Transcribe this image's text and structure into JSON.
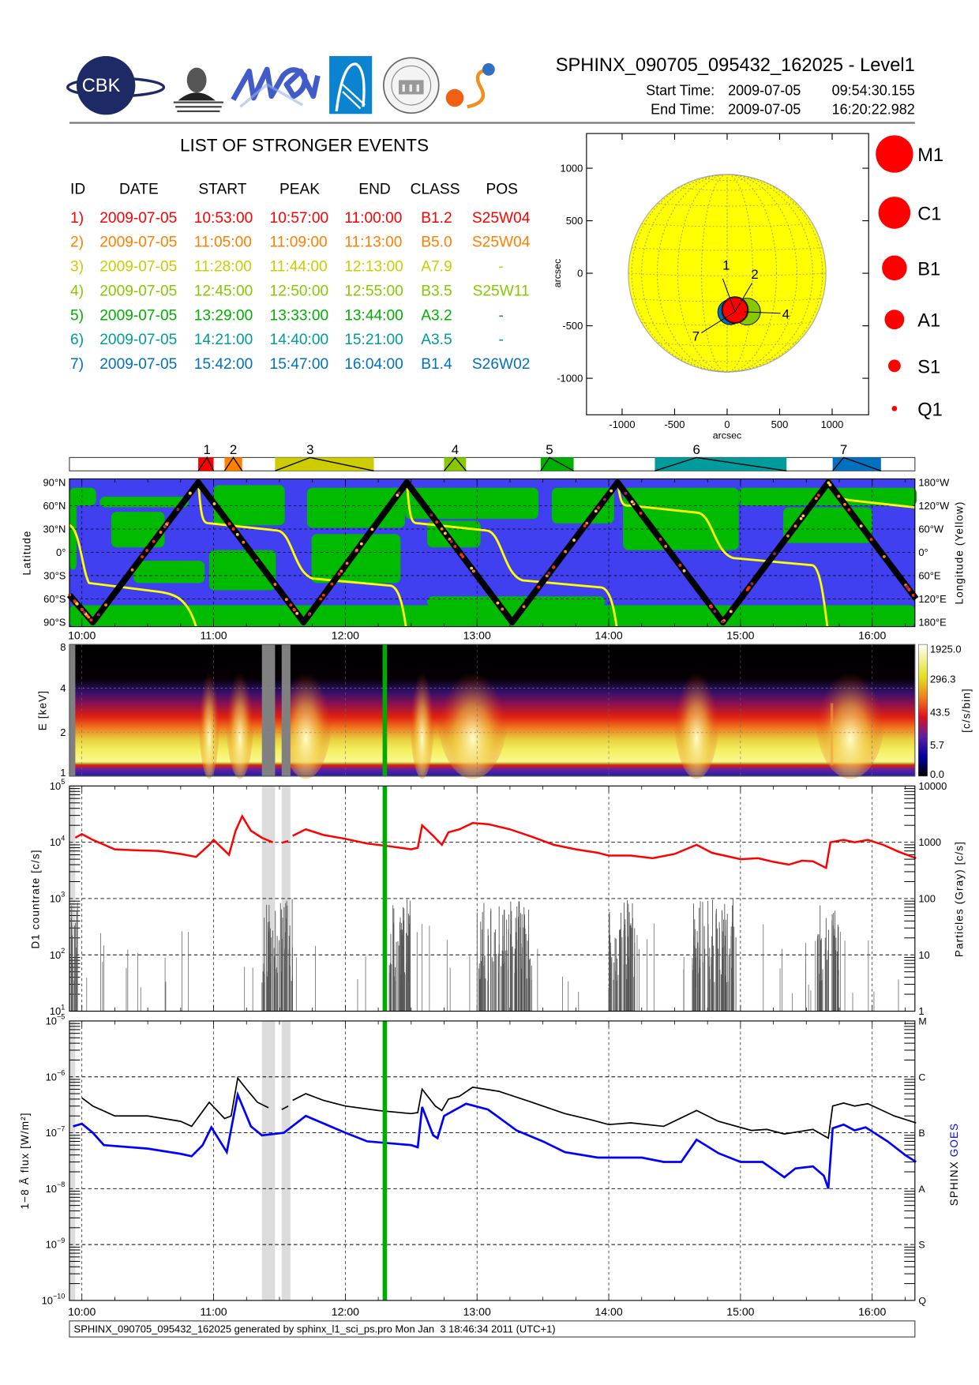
{
  "header": {
    "title": "SPHINX_090705_095432_162025 - Level1",
    "start_label": "Start Time:",
    "start_date": "2009-07-05",
    "start_time": "09:54:30.155",
    "end_label": "End Time:",
    "end_date": "2009-07-05",
    "end_time": "16:20:22.982",
    "logos": [
      "CBK PAN",
      "P.N. Lebedev Physical Institute of the Russian Academy of Science",
      "МИФИ",
      "Institute logo",
      "Seal",
      "Sun logo"
    ]
  },
  "events": {
    "title": "LIST OF STRONGER EVENTS",
    "columns": [
      "ID",
      "DATE",
      "START",
      "PEAK",
      "END",
      "CLASS",
      "POS"
    ],
    "rows": [
      {
        "id": "1)",
        "date": "2009-07-05",
        "start": "10:53:00",
        "peak": "10:57:00",
        "end": "11:00:00",
        "class": "B1.2",
        "pos": "S25W04",
        "color": "#ff0000",
        "num": "1"
      },
      {
        "id": "2)",
        "date": "2009-07-05",
        "start": "11:05:00",
        "peak": "11:09:00",
        "end": "11:13:00",
        "class": "B5.0",
        "pos": "S25W04",
        "color": "#ff7f00",
        "num": "2"
      },
      {
        "id": "3)",
        "date": "2009-07-05",
        "start": "11:28:00",
        "peak": "11:44:00",
        "end": "12:13:00",
        "class": "A7.9",
        "pos": "-",
        "color": "#cccc00",
        "num": "3"
      },
      {
        "id": "4)",
        "date": "2009-07-05",
        "start": "12:45:00",
        "peak": "12:50:00",
        "end": "12:55:00",
        "class": "B3.5",
        "pos": "S25W11",
        "color": "#88c800",
        "num": "4"
      },
      {
        "id": "5)",
        "date": "2009-07-05",
        "start": "13:29:00",
        "peak": "13:33:00",
        "end": "13:44:00",
        "class": "A3.2",
        "pos": "-",
        "color": "#00b000",
        "num": "5"
      },
      {
        "id": "6)",
        "date": "2009-07-05",
        "start": "14:21:00",
        "peak": "14:40:00",
        "end": "15:21:00",
        "class": "A3.5",
        "pos": "-",
        "color": "#009b9b",
        "num": "6"
      },
      {
        "id": "7)",
        "date": "2009-07-05",
        "start": "15:42:00",
        "peak": "15:47:00",
        "end": "16:04:00",
        "class": "B1.4",
        "pos": "S26W02",
        "color": "#0070c0",
        "num": "7"
      }
    ]
  },
  "sun_map": {
    "xlabel": "arcsec",
    "ylabel": "arcsec",
    "ticks": [
      "-1000",
      "-500",
      "0",
      "500",
      "1000"
    ],
    "tick_values": [
      -1000,
      -500,
      0,
      500,
      1000
    ],
    "disk_color": "#ffff00",
    "markers": [
      {
        "label": "1",
        "x": 75,
        "y": -350,
        "color": "#ff0000"
      },
      {
        "label": "2",
        "x": 75,
        "y": -350,
        "color": "#ff7f00"
      },
      {
        "label": "4",
        "x": 190,
        "y": -365,
        "color": "#88c800"
      },
      {
        "label": "7",
        "x": 30,
        "y": -370,
        "color": "#0070c0"
      }
    ],
    "legend": [
      "M1",
      "C1",
      "B1",
      "A1",
      "S1",
      "Q1"
    ]
  },
  "chart_data": [
    {
      "type": "line",
      "title": "",
      "xlabel": "",
      "ylabel": "Latitude",
      "ylabel_right": "Longitude (Yellow)",
      "y_ticks_left": [
        "90°N",
        "60°N",
        "30°N",
        "0°",
        "30°S",
        "60°S",
        "90°S"
      ],
      "y_ticks_right": [
        "180°W",
        "120°W",
        "60°W",
        "0°",
        "60°E",
        "120°E",
        "180°E"
      ],
      "ylim": [
        -90,
        90
      ],
      "orbit_turning_points": [
        [
          "09:54:30",
          -55
        ],
        [
          "10:05",
          -90
        ],
        [
          "10:53",
          90
        ],
        [
          "11:41",
          -90
        ],
        [
          "12:28",
          90
        ],
        [
          "13:16",
          -90
        ],
        [
          "14:04",
          90
        ],
        [
          "14:52",
          -90
        ],
        [
          "15:40",
          90
        ],
        [
          "16:20",
          -60
        ]
      ],
      "colors": {
        "background": "#4040f0",
        "regions": "#00bb00",
        "orbit": "#000000",
        "longitude": "#ffff00"
      }
    },
    {
      "type": "heatmap",
      "ylabel": "E [keV]",
      "y_ticks": [
        "1",
        "2",
        "4",
        "8"
      ],
      "colorbar_label": "[c/s/bin]",
      "colorbar_ticks": [
        "1925.0",
        "296.3",
        "43.5",
        "5.7",
        "0.0"
      ]
    },
    {
      "type": "line",
      "ylabel": "D1 countrate [c/s]",
      "ylabel_right": "Particles (Gray) [c/s]",
      "y_tick_base": "10",
      "y_tick_exponents": [
        "1",
        "2",
        "3",
        "4",
        "5"
      ],
      "y_ticks_right": [
        "1",
        "10",
        "100",
        "1000",
        "10000"
      ],
      "ylim": [
        10,
        100000
      ],
      "log": true,
      "series": [
        {
          "color": "#ff0000",
          "points": [
            [
              "09:57",
              12000
            ],
            [
              "10:00",
              14000
            ],
            [
              "10:05",
              11000
            ],
            [
              "10:15",
              7500
            ],
            [
              "10:25",
              7200
            ],
            [
              "10:35",
              7000
            ],
            [
              "10:45",
              6200
            ],
            [
              "10:52",
              5500
            ],
            [
              "10:58",
              9000
            ],
            [
              "11:00",
              11000
            ],
            [
              "11:07",
              6000
            ],
            [
              "11:10",
              16000
            ],
            [
              "11:13",
              29000
            ],
            [
              "11:17",
              16000
            ],
            [
              "11:22",
              12000
            ],
            [
              "11:27",
              10000
            ],
            [
              null,
              null
            ],
            [
              "11:31",
              9800
            ],
            [
              "11:34",
              10500
            ],
            [
              null,
              null
            ],
            [
              "11:36",
              13000
            ],
            [
              "11:42",
              17000
            ],
            [
              "11:50",
              13500
            ],
            [
              "12:00",
              11500
            ],
            [
              "12:10",
              9500
            ],
            [
              "12:20",
              8500
            ],
            [
              "12:25",
              8000
            ],
            [
              "12:30",
              7500
            ],
            [
              "12:33",
              8000
            ],
            [
              "12:35",
              20000
            ],
            [
              "12:40",
              13000
            ],
            [
              "12:44",
              9000
            ],
            [
              "12:47",
              15000
            ],
            [
              "12:52",
              17000
            ],
            [
              "12:58",
              22000
            ],
            [
              "13:05",
              21000
            ],
            [
              "13:15",
              17000
            ],
            [
              "13:25",
              12500
            ],
            [
              "13:35",
              9000
            ],
            [
              "13:45",
              7500
            ],
            [
              "13:55",
              6500
            ],
            [
              "14:00",
              5800
            ],
            [
              "14:10",
              5800
            ],
            [
              "14:20",
              5200
            ],
            [
              "14:30",
              6200
            ],
            [
              "14:40",
              9000
            ],
            [
              "14:47",
              6500
            ],
            [
              "15:00",
              5000
            ],
            [
              "15:08",
              5200
            ],
            [
              "15:15",
              4500
            ],
            [
              "15:22",
              4000
            ],
            [
              "15:28",
              4700
            ],
            [
              "15:33",
              4600
            ],
            [
              "15:39",
              3500
            ],
            [
              "15:41",
              10000
            ],
            [
              "15:47",
              11000
            ],
            [
              "15:52",
              10000
            ],
            [
              "15:58",
              11000
            ],
            [
              "16:05",
              9000
            ],
            [
              "16:12",
              6800
            ],
            [
              "16:20",
              5200
            ]
          ]
        }
      ],
      "particle_bursts": [
        [
          "09:55",
          "09:58"
        ],
        [
          "11:22",
          "11:36"
        ],
        [
          "12:18",
          "12:30"
        ],
        [
          "13:00",
          "13:25"
        ],
        [
          "14:00",
          "14:12"
        ],
        [
          "14:38",
          "14:58"
        ],
        [
          "15:35",
          "15:45"
        ]
      ]
    },
    {
      "type": "line",
      "ylabel": "1−8 Å flux [W/m²]",
      "y_tick_base": "10",
      "y_tick_exponents": [
        "−10",
        "−9",
        "−8",
        "−7",
        "−6",
        "−5"
      ],
      "y_ticks_right": [
        "Q",
        "S",
        "A",
        "B",
        "C",
        "M"
      ],
      "ylim": [
        1e-10,
        1e-05
      ],
      "log": true,
      "legend": [
        "SPHINX",
        "GOES"
      ],
      "series": [
        {
          "name": "SPHINX",
          "color": "#000000",
          "points": [
            [
              "10:00",
              4.2e-07
            ],
            [
              "10:05",
              3e-07
            ],
            [
              "10:15",
              2e-07
            ],
            [
              "10:30",
              2e-07
            ],
            [
              "10:45",
              1.6e-07
            ],
            [
              "10:50",
              1.3e-07
            ],
            [
              "10:58",
              3.5e-07
            ],
            [
              "11:05",
              1.8e-07
            ],
            [
              "11:08",
              2e-07
            ],
            [
              "11:11",
              9.5e-07
            ],
            [
              "11:15",
              6e-07
            ],
            [
              "11:20",
              3.5e-07
            ],
            [
              "11:25",
              2.8e-07
            ],
            [
              null,
              null
            ],
            [
              "11:31",
              2.6e-07
            ],
            [
              "11:34",
              3e-07
            ],
            [
              null,
              null
            ],
            [
              "11:36",
              3.8e-07
            ],
            [
              "11:42",
              5e-07
            ],
            [
              "11:50",
              3.8e-07
            ],
            [
              "12:00",
              3e-07
            ],
            [
              "12:15",
              2.5e-07
            ],
            [
              "12:30",
              2.2e-07
            ],
            [
              "12:33",
              2.3e-07
            ],
            [
              "12:35",
              6e-07
            ],
            [
              "12:41",
              3e-07
            ],
            [
              "12:44",
              2.5e-07
            ],
            [
              "12:47",
              4e-07
            ],
            [
              "12:52",
              4.5e-07
            ],
            [
              "12:58",
              6.5e-07
            ],
            [
              "13:10",
              5.5e-07
            ],
            [
              "13:25",
              3.5e-07
            ],
            [
              "13:40",
              2.2e-07
            ],
            [
              "13:52",
              1.7e-07
            ],
            [
              "14:00",
              1.4e-07
            ],
            [
              "14:10",
              1.5e-07
            ],
            [
              "14:25",
              1.3e-07
            ],
            [
              "14:40",
              2.5e-07
            ],
            [
              "14:50",
              1.6e-07
            ],
            [
              "15:05",
              1.1e-07
            ],
            [
              "15:12",
              1.15e-07
            ],
            [
              "15:20",
              9.5e-08
            ],
            [
              "15:33",
              1.15e-07
            ],
            [
              "15:40",
              8e-08
            ],
            [
              "15:42",
              3e-07
            ],
            [
              "15:47",
              3.4e-07
            ],
            [
              "15:52",
              3e-07
            ],
            [
              "15:58",
              3.3e-07
            ],
            [
              "16:10",
              2e-07
            ],
            [
              "16:20",
              1.5e-07
            ]
          ]
        },
        {
          "name": "GOES",
          "color": "#0000ff",
          "points": [
            [
              "09:56",
              1.3e-07
            ],
            [
              "10:00",
              1.45e-07
            ],
            [
              "10:05",
              1e-07
            ],
            [
              "10:10",
              6e-08
            ],
            [
              "10:30",
              5.2e-08
            ],
            [
              "10:45",
              4.2e-08
            ],
            [
              "10:50",
              3.8e-08
            ],
            [
              "10:55",
              6e-08
            ],
            [
              "10:59",
              1.25e-07
            ],
            [
              "11:06",
              4.5e-08
            ],
            [
              "11:11",
              4.8e-07
            ],
            [
              "11:17",
              1.3e-07
            ],
            [
              "11:22",
              9e-08
            ],
            [
              "11:32",
              1e-07
            ],
            [
              "11:42",
              2e-07
            ],
            [
              "12:00",
              1e-07
            ],
            [
              "12:10",
              7e-08
            ],
            [
              "12:30",
              6e-08
            ],
            [
              "12:33",
              5.5e-08
            ],
            [
              "12:35",
              2.9e-07
            ],
            [
              "12:40",
              9e-08
            ],
            [
              "12:42",
              8e-08
            ],
            [
              "12:45",
              2e-07
            ],
            [
              "12:55",
              3.3e-07
            ],
            [
              "13:05",
              2.6e-07
            ],
            [
              "13:18",
              1.1e-07
            ],
            [
              "13:30",
              7e-08
            ],
            [
              "13:40",
              4.5e-08
            ],
            [
              "13:55",
              3.6e-08
            ],
            [
              "14:15",
              3.6e-08
            ],
            [
              "14:25",
              3e-08
            ],
            [
              "14:33",
              3e-08
            ],
            [
              "14:40",
              7.5e-08
            ],
            [
              "14:50",
              4.3e-08
            ],
            [
              "15:00",
              3e-08
            ],
            [
              "15:10",
              3e-08
            ],
            [
              "15:15",
              2.2e-08
            ],
            [
              "15:20",
              1.6e-08
            ],
            [
              "15:25",
              2.3e-08
            ],
            [
              "15:33",
              2.5e-08
            ],
            [
              "15:38",
              1.7e-08
            ],
            [
              "15:40",
              1e-08
            ],
            [
              "15:42",
              1.2e-07
            ],
            [
              "15:47",
              1.4e-07
            ],
            [
              "15:52",
              1.1e-07
            ],
            [
              "15:57",
              1.25e-07
            ],
            [
              "16:07",
              7e-08
            ],
            [
              "16:15",
              4e-08
            ],
            [
              "16:20",
              3e-08
            ]
          ]
        }
      ],
      "excluded_intervals": [
        [
          "09:54:30",
          "09:57"
        ],
        [
          "11:22",
          "11:28"
        ],
        [
          "11:31",
          "11:35"
        ]
      ],
      "marker_time": "12:18",
      "marker_color": "#00aa00"
    }
  ],
  "time_axis": {
    "ticks": [
      "10:00",
      "11:00",
      "12:00",
      "13:00",
      "14:00",
      "15:00",
      "16:00"
    ]
  },
  "footer": {
    "text": "SPHINX_090705_095432_162025 generated by sphinx_l1_sci_ps.pro Mon Jan  3 18:46:34 2011 (UTC+1)"
  }
}
